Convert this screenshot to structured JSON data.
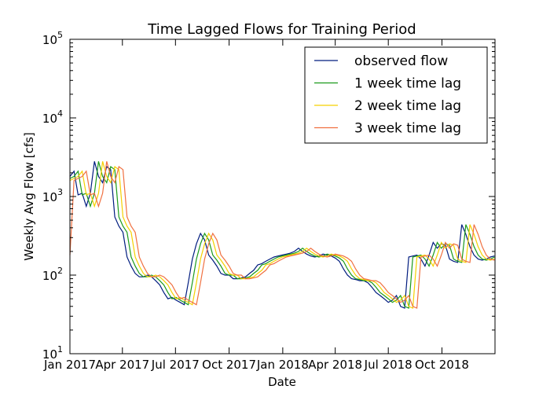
{
  "chart_data": {
    "type": "line",
    "title": "Time Lagged Flows for Training Period",
    "xlabel": "Date",
    "ylabel": "Weekly Avg Flow [cfs]",
    "yscale": "log",
    "ylim": [
      10,
      100000
    ],
    "xlim": [
      "2017-01-01",
      "2018-12-31"
    ],
    "grid": false,
    "legend_position": "top-right",
    "y_ticks": [
      {
        "value": 10,
        "base": "10",
        "exp": "1"
      },
      {
        "value": 100,
        "base": "10",
        "exp": "2"
      },
      {
        "value": 1000,
        "base": "10",
        "exp": "3"
      },
      {
        "value": 10000,
        "base": "10",
        "exp": "4"
      },
      {
        "value": 100000,
        "base": "10",
        "exp": "5"
      }
    ],
    "x_ticks": [
      {
        "date": "2017-01-01",
        "label": "Jan 2017"
      },
      {
        "date": "2017-04-01",
        "label": "Apr 2017"
      },
      {
        "date": "2017-07-01",
        "label": "Jul 2017"
      },
      {
        "date": "2017-10-01",
        "label": "Oct 2017"
      },
      {
        "date": "2018-01-01",
        "label": "Jan 2018"
      },
      {
        "date": "2018-04-01",
        "label": "Apr 2018"
      },
      {
        "date": "2018-07-01",
        "label": "Jul 2018"
      },
      {
        "date": "2018-10-01",
        "label": "Oct 2018"
      }
    ],
    "x": [
      "2017-01-01",
      "2017-01-08",
      "2017-01-15",
      "2017-01-22",
      "2017-01-29",
      "2017-02-05",
      "2017-02-12",
      "2017-02-19",
      "2017-02-26",
      "2017-03-05",
      "2017-03-12",
      "2017-03-19",
      "2017-03-26",
      "2017-04-02",
      "2017-04-09",
      "2017-04-16",
      "2017-04-23",
      "2017-04-30",
      "2017-05-07",
      "2017-05-14",
      "2017-05-21",
      "2017-05-28",
      "2017-06-04",
      "2017-06-11",
      "2017-06-18",
      "2017-06-25",
      "2017-07-02",
      "2017-07-09",
      "2017-07-16",
      "2017-07-23",
      "2017-07-30",
      "2017-08-06",
      "2017-08-13",
      "2017-08-20",
      "2017-08-27",
      "2017-09-03",
      "2017-09-10",
      "2017-09-17",
      "2017-09-24",
      "2017-10-01",
      "2017-10-08",
      "2017-10-15",
      "2017-10-22",
      "2017-10-29",
      "2017-11-05",
      "2017-11-12",
      "2017-11-19",
      "2017-11-26",
      "2017-12-03",
      "2017-12-10",
      "2017-12-17",
      "2017-12-24",
      "2017-12-31",
      "2018-01-07",
      "2018-01-14",
      "2018-01-21",
      "2018-01-28",
      "2018-02-04",
      "2018-02-11",
      "2018-02-18",
      "2018-02-25",
      "2018-03-04",
      "2018-03-11",
      "2018-03-18",
      "2018-03-25",
      "2018-04-01",
      "2018-04-08",
      "2018-04-15",
      "2018-04-22",
      "2018-04-29",
      "2018-05-06",
      "2018-05-13",
      "2018-05-20",
      "2018-05-27",
      "2018-06-03",
      "2018-06-10",
      "2018-06-17",
      "2018-06-24",
      "2018-07-01",
      "2018-07-08",
      "2018-07-15",
      "2018-07-22",
      "2018-07-29",
      "2018-08-05",
      "2018-08-12",
      "2018-08-19",
      "2018-08-26",
      "2018-09-02",
      "2018-09-09",
      "2018-09-16",
      "2018-09-23",
      "2018-09-30",
      "2018-10-07",
      "2018-10-14",
      "2018-10-21",
      "2018-10-28",
      "2018-11-04",
      "2018-11-11",
      "2018-11-18",
      "2018-11-25",
      "2018-12-02",
      "2018-12-09",
      "2018-12-16",
      "2018-12-23",
      "2018-12-30"
    ],
    "series": [
      {
        "name": "observed flow",
        "color": "#001c7f",
        "values": [
          1800,
          2100,
          1050,
          1100,
          750,
          1100,
          2800,
          1800,
          1500,
          2400,
          2200,
          550,
          420,
          350,
          170,
          130,
          105,
          95,
          95,
          100,
          95,
          85,
          75,
          60,
          50,
          52,
          48,
          45,
          42,
          80,
          160,
          250,
          340,
          280,
          180,
          155,
          130,
          105,
          100,
          100,
          90,
          90,
          92,
          95,
          105,
          115,
          135,
          140,
          150,
          160,
          170,
          175,
          180,
          185,
          190,
          200,
          220,
          200,
          185,
          175,
          170,
          175,
          185,
          180,
          175,
          165,
          150,
          120,
          100,
          90,
          88,
          85,
          85,
          80,
          70,
          60,
          55,
          50,
          45,
          48,
          55,
          40,
          38,
          170,
          175,
          180,
          160,
          130,
          180,
          260,
          220,
          250,
          240,
          160,
          150,
          145,
          440,
          330,
          230,
          180,
          160,
          155,
          160,
          170,
          175
        ]
      },
      {
        "name": "1 week time lag",
        "color": "#1a9a1a",
        "values": [
          1700,
          1800,
          2100,
          1050,
          1100,
          750,
          1100,
          2800,
          1800,
          1500,
          2400,
          2200,
          550,
          420,
          350,
          170,
          130,
          105,
          95,
          95,
          100,
          95,
          85,
          75,
          60,
          50,
          52,
          48,
          45,
          42,
          80,
          160,
          250,
          340,
          280,
          180,
          155,
          130,
          105,
          100,
          100,
          90,
          90,
          92,
          95,
          105,
          115,
          135,
          140,
          150,
          160,
          170,
          175,
          180,
          185,
          190,
          200,
          220,
          200,
          185,
          175,
          170,
          175,
          185,
          180,
          175,
          165,
          150,
          120,
          100,
          90,
          88,
          85,
          85,
          80,
          70,
          60,
          55,
          50,
          45,
          48,
          55,
          40,
          38,
          170,
          175,
          180,
          160,
          130,
          180,
          260,
          220,
          250,
          240,
          160,
          150,
          145,
          440,
          330,
          230,
          180,
          160,
          155,
          160,
          170
        ]
      },
      {
        "name": "2 week time lag",
        "color": "#f5d000",
        "values": [
          1600,
          1700,
          1800,
          2100,
          1050,
          1100,
          750,
          1100,
          2800,
          1800,
          1500,
          2400,
          2200,
          550,
          420,
          350,
          170,
          130,
          105,
          95,
          95,
          100,
          95,
          85,
          75,
          60,
          50,
          52,
          48,
          45,
          42,
          80,
          160,
          250,
          340,
          280,
          180,
          155,
          130,
          105,
          100,
          100,
          90,
          90,
          92,
          95,
          105,
          115,
          135,
          140,
          150,
          160,
          170,
          175,
          180,
          185,
          190,
          200,
          220,
          200,
          185,
          175,
          170,
          175,
          185,
          180,
          175,
          165,
          150,
          120,
          100,
          90,
          88,
          85,
          85,
          80,
          70,
          60,
          55,
          50,
          45,
          48,
          55,
          40,
          38,
          170,
          175,
          180,
          160,
          130,
          180,
          260,
          220,
          250,
          240,
          160,
          150,
          145,
          440,
          330,
          230,
          180,
          160,
          155,
          160
        ]
      },
      {
        "name": "3 week time lag",
        "color": "#f07040",
        "values": [
          180,
          1600,
          1700,
          1800,
          2100,
          1050,
          1100,
          750,
          1100,
          2800,
          1800,
          1500,
          2400,
          2200,
          550,
          420,
          350,
          170,
          130,
          105,
          95,
          95,
          100,
          95,
          85,
          75,
          60,
          50,
          52,
          48,
          45,
          42,
          80,
          160,
          250,
          340,
          280,
          180,
          155,
          130,
          105,
          100,
          100,
          90,
          90,
          92,
          95,
          105,
          115,
          135,
          140,
          150,
          160,
          170,
          175,
          180,
          185,
          190,
          200,
          220,
          200,
          185,
          175,
          170,
          175,
          185,
          180,
          175,
          165,
          150,
          120,
          100,
          90,
          88,
          85,
          85,
          80,
          70,
          60,
          55,
          50,
          45,
          48,
          55,
          40,
          38,
          170,
          175,
          180,
          160,
          130,
          180,
          260,
          220,
          250,
          240,
          160,
          150,
          145,
          440,
          330,
          230,
          180,
          160,
          155
        ]
      }
    ]
  }
}
